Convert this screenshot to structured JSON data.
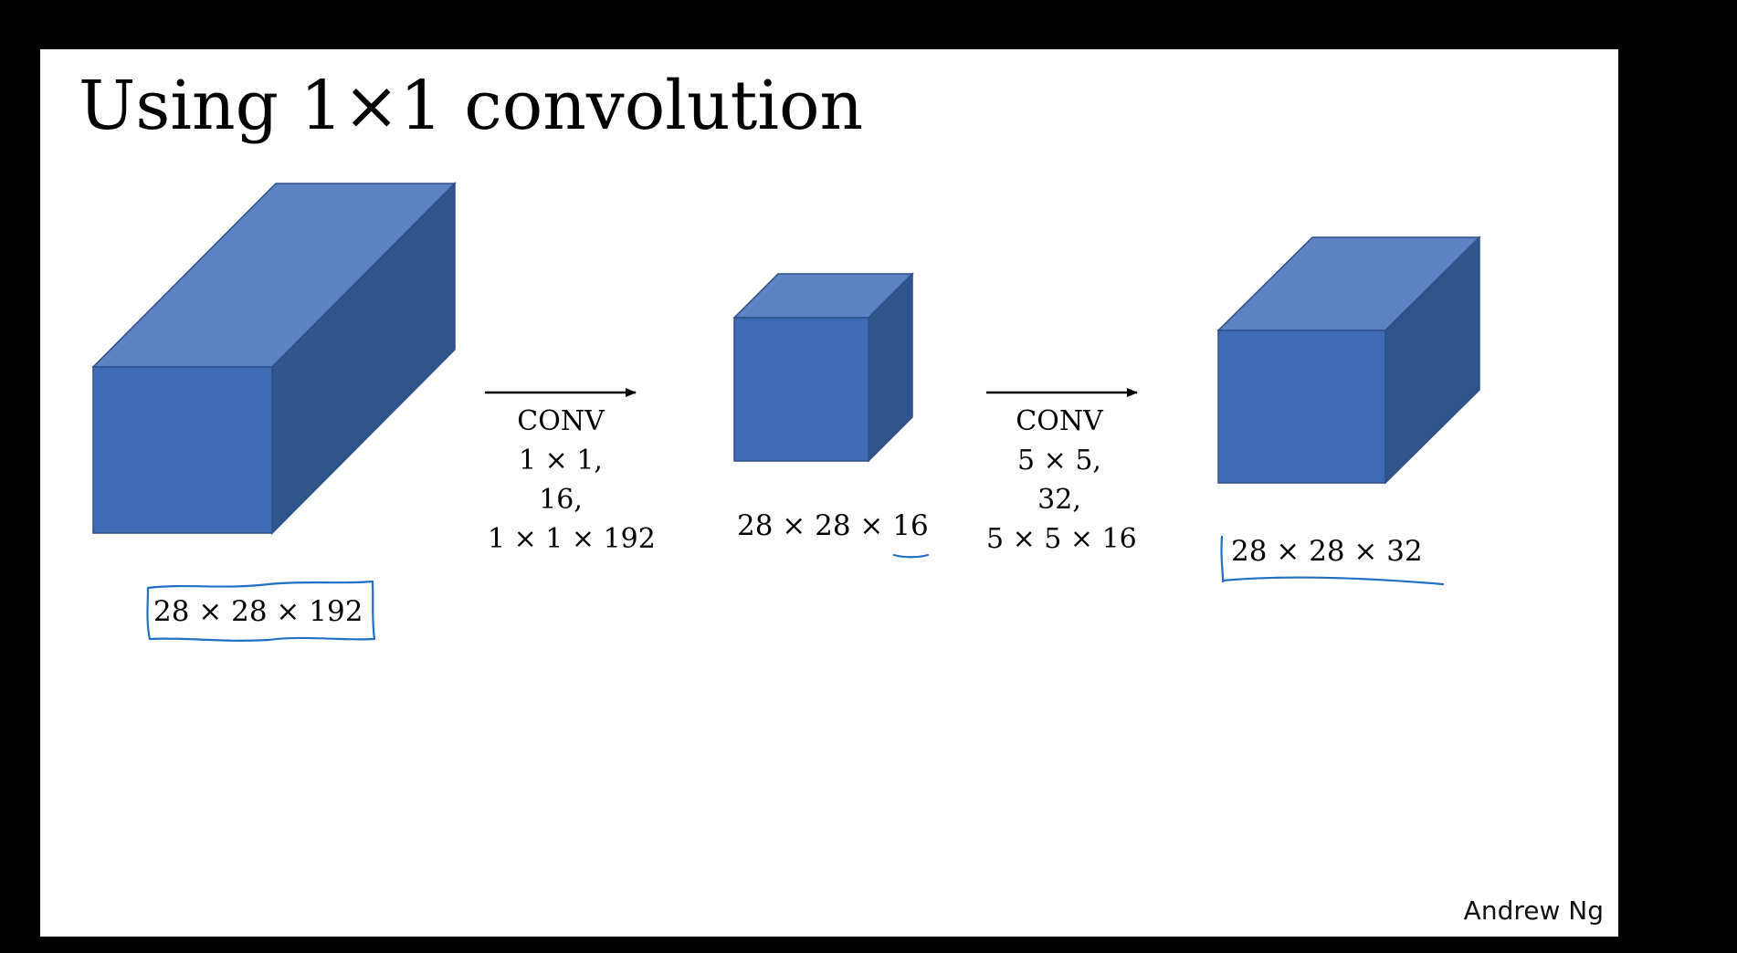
{
  "slide": {
    "title": "Using 1×1 convolution",
    "author": "Andrew Ng"
  },
  "volumes": [
    {
      "id": "input",
      "label": "28 × 28 × 192",
      "annotation": "hand-drawn box around label"
    },
    {
      "id": "bottleneck",
      "label_prefix": "28 × 28 × ",
      "label_channels": "16",
      "annotation": "hand-drawn underline under 16"
    },
    {
      "id": "output",
      "label": "28 × 28 × 32",
      "annotation": "hand-drawn bracket and underline"
    }
  ],
  "conv_steps": [
    {
      "op": "CONV",
      "filter": "1 × 1,",
      "count": "16,",
      "shape": "1 × 1 × 192"
    },
    {
      "op": "CONV",
      "filter": "5 × 5,",
      "count": "32,",
      "shape": "5 × 5 × 16"
    }
  ],
  "colors": {
    "cube_front": "#3d6cb3",
    "cube_top": "#5e83c2",
    "cube_side": "#2f558c",
    "cube_edge": "#2d4f88",
    "ink": "#1f6fc4",
    "arrow": "#000000",
    "background": "#000000",
    "slide": "#ffffff"
  }
}
